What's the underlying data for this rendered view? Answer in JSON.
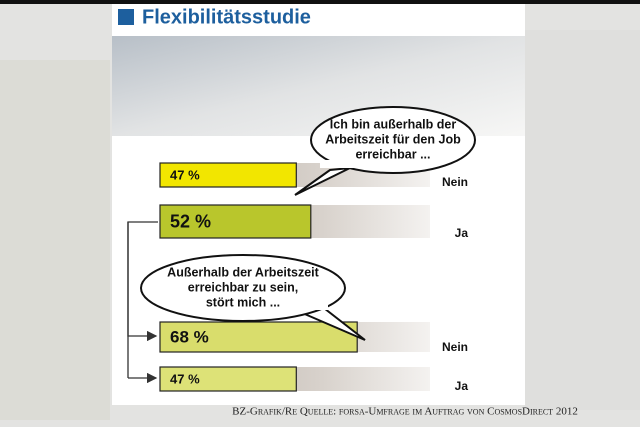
{
  "chart_data": {
    "type": "bar",
    "title": "Flexibilitätsstudie",
    "categories": [
      "Nein",
      "Ja",
      "Nein",
      "Ja"
    ],
    "values": [
      47,
      52,
      68,
      47
    ],
    "value_labels": [
      "47 %",
      "52 %",
      "68 %",
      "47 %"
    ],
    "colors": [
      "#f2e600",
      "#b9c62c",
      "#d9dd6c",
      "#dde277"
    ],
    "xlim": [
      0,
      100
    ],
    "annotations": [
      [
        "Ich bin außerhalb der",
        "Arbeitszeit für den Job",
        "erreichbar ..."
      ],
      [
        "Außerhalb der Arbeitszeit",
        "erreichbar zu sein,",
        "stört mich ..."
      ]
    ],
    "source": "BZ-Grafik/Re Quelle: forsa-Umfrage im Auftrag von CosmosDirect 2012"
  }
}
